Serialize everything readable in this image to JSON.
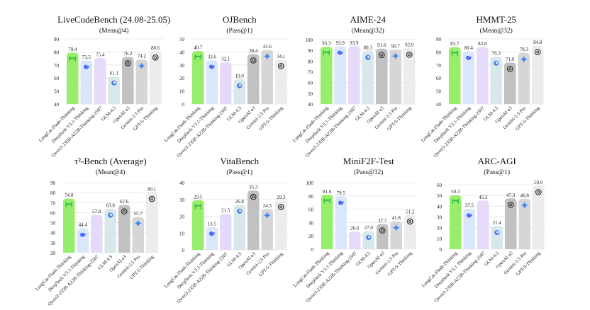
{
  "models": [
    "LongCat-Flash-Thinking",
    "DeepSeek V3.1-Thinking",
    "Qwen3-235B-A22B-Thinking-2507",
    "GLM-4.5",
    "OpenAI o3",
    "Gemini-2.5 Pro",
    "GPT-5-Thinking"
  ],
  "model_colors": [
    "#97ee6b",
    "#dae7fb",
    "#e6dafa",
    "#d7e7ea",
    "#c1c1c1",
    "#d6d6d6",
    "#ececec"
  ],
  "model_icons": [
    "longcat-icon",
    "deepseek-whale-icon",
    "",
    "glm-icon",
    "openai-icon",
    "gemini-sparkle-icon",
    "openai-icon"
  ],
  "icon_colors": {
    "longcat-icon": "#2fb84a",
    "deepseek-whale-icon": "#4d6bfe",
    "glm-icon": "#3b6fe8",
    "openai-icon": "#333333",
    "gemini-sparkle-icon": "#3d86f5"
  },
  "chart_data": [
    {
      "type": "bar",
      "title": "LiveCodeBench (24.08-25.05)",
      "subtitle": "(Mean@4)",
      "categories": [
        "LongCat-Flash-Thinking",
        "DeepSeek V3.1-Thinking",
        "Qwen3-235B-A22B-Thinking-2507",
        "GLM-4.5",
        "OpenAI o3",
        "Gemini-2.5 Pro",
        "GPT-5-Thinking"
      ],
      "values": [
        79.4,
        73.5,
        75.4,
        61.1,
        76.2,
        74.2,
        80.6
      ],
      "value_labels": [
        "79.4",
        "73.5",
        "75.4",
        "61.1",
        "76.2",
        "74.2",
        "80.6"
      ],
      "ylim": [
        40,
        90
      ],
      "yticks": [
        40,
        50,
        60,
        70,
        80,
        90
      ],
      "xlabel": "",
      "ylabel": "",
      "grid": true
    },
    {
      "type": "bar",
      "title": "OJBench",
      "subtitle": "(Pass@1)",
      "categories": [
        "LongCat-Flash-Thinking",
        "DeepSeek V3.1-Thinking",
        "Qwen3-235B-A22B-Thinking-2507",
        "GLM-4.5",
        "OpenAI o3",
        "Gemini-2.5 Pro",
        "GPT-5-Thinking"
      ],
      "values": [
        40.7,
        33.6,
        32.1,
        19.0,
        38.4,
        41.6,
        34.1
      ],
      "value_labels": [
        "40.7",
        "33.6",
        "32.1",
        "19.0",
        "38.4",
        "41.6",
        "34.1"
      ],
      "ylim": [
        0,
        50
      ],
      "yticks": [
        0,
        10,
        20,
        30,
        40,
        50
      ],
      "xlabel": "",
      "ylabel": "",
      "grid": true
    },
    {
      "type": "bar",
      "title": "AIME-24",
      "subtitle": "(Mean@32)",
      "categories": [
        "LongCat-Flash-Thinking",
        "DeepSeek V3.1-Thinking",
        "Qwen3-235B-A22B-Thinking-2507",
        "GLM-4.5",
        "OpenAI o3",
        "Gemini-2.5 Pro",
        "GPT-5-Thinking"
      ],
      "values": [
        93.3,
        93.9,
        93.9,
        89.3,
        91.6,
        90.7,
        92.0
      ],
      "value_labels": [
        "93.3",
        "93.9",
        "93.9",
        "89.3",
        "91.6",
        "90.7",
        "92.0"
      ],
      "ylim": [
        40,
        100
      ],
      "yticks": [
        40,
        50,
        60,
        70,
        80,
        90,
        100
      ],
      "xlabel": "",
      "ylabel": "",
      "grid": true
    },
    {
      "type": "bar",
      "title": "HMMT-25",
      "subtitle": "(Mean@32)",
      "categories": [
        "LongCat-Flash-Thinking",
        "DeepSeek V3.1-Thinking",
        "Qwen3-235B-A22B-Thinking-2507",
        "GLM-4.5",
        "OpenAI o3",
        "Gemini-2.5 Pro",
        "GPT-5-Thinking"
      ],
      "values": [
        83.7,
        80.4,
        83.8,
        76.3,
        71.9,
        79.3,
        84.8
      ],
      "value_labels": [
        "83.7",
        "80.4",
        "83.8",
        "76.3",
        "71.9",
        "79.3",
        "84.8"
      ],
      "ylim": [
        40,
        90
      ],
      "yticks": [
        40,
        50,
        60,
        70,
        80,
        90
      ],
      "xlabel": "",
      "ylabel": "",
      "grid": true
    },
    {
      "type": "bar",
      "title": "τ²-Bench (Average)",
      "subtitle": "(Mean@4)",
      "categories": [
        "LongCat-Flash-Thinking",
        "DeepSeek V3.1-Thinking",
        "Qwen3-235B-A22B-Thinking-2507",
        "GLM-4.5",
        "OpenAI o3",
        "Gemini-2.5 Pro",
        "GPT-5-Thinking"
      ],
      "values": [
        74.0,
        44.4,
        57.8,
        63.8,
        67.6,
        55.7,
        80.1
      ],
      "value_labels": [
        "74.0",
        "44.4",
        "57.8",
        "63.8",
        "67.6",
        "55.7",
        "80.1"
      ],
      "ylim": [
        20,
        90
      ],
      "yticks": [
        20,
        30,
        40,
        50,
        60,
        70,
        80,
        90
      ],
      "xlabel": "",
      "ylabel": "",
      "grid": true
    },
    {
      "type": "bar",
      "title": "VitaBench",
      "subtitle": "(Pass@1)",
      "categories": [
        "LongCat-Flash-Thinking",
        "DeepSeek V3.1-Thinking",
        "Qwen3-235B-A22B-Thinking-2507",
        "GLM-4.5",
        "OpenAI o3",
        "Gemini-2.5 Pro",
        "GPT-5-Thinking"
      ],
      "values": [
        29.5,
        13.5,
        21.5,
        26.8,
        35.3,
        24.3,
        29.3
      ],
      "value_labels": [
        "29.5",
        "13.5",
        "21.5",
        "26.8",
        "35.3",
        "24.3",
        "29.3"
      ],
      "ylim": [
        0,
        40
      ],
      "yticks": [
        0,
        10,
        20,
        30,
        40
      ],
      "xlabel": "",
      "ylabel": "",
      "grid": true
    },
    {
      "type": "bar",
      "title": "MiniF2F-Test",
      "subtitle": "(Pass@32)",
      "categories": [
        "LongCat-Flash-Thinking",
        "DeepSeek V3.1-Thinking",
        "Qwen3-235B-A22B-Thinking-2507",
        "GLM-4.5",
        "OpenAI o3",
        "Gemini-2.5 Pro",
        "GPT-5-Thinking"
      ],
      "values": [
        81.6,
        79.5,
        26.6,
        27.0,
        37.7,
        41.8,
        51.2
      ],
      "value_labels": [
        "81.6",
        "79.5",
        "26.6",
        "27.0",
        "37.7",
        "41.8",
        "51.2"
      ],
      "ylim": [
        0,
        100
      ],
      "yticks": [
        0,
        20,
        40,
        60,
        80,
        100
      ],
      "xlabel": "",
      "ylabel": "",
      "grid": true
    },
    {
      "type": "bar",
      "title": "ARC-AGI",
      "subtitle": "(Pass@1)",
      "categories": [
        "LongCat-Flash-Thinking",
        "DeepSeek V3.1-Thinking",
        "Qwen3-235B-A22B-Thinking-2507",
        "GLM-4.5",
        "OpenAI o3",
        "Gemini-2.5 Pro",
        "GPT-5-Thinking"
      ],
      "values": [
        50.3,
        37.5,
        45.3,
        21.4,
        47.3,
        46.8,
        59.0
      ],
      "value_labels": [
        "50.3",
        "37.5",
        "45.3",
        "21.4",
        "47.3",
        "46.8",
        "59.0"
      ],
      "ylim": [
        0,
        60
      ],
      "yticks": [
        0,
        10,
        20,
        30,
        40,
        50,
        60
      ],
      "xlabel": "",
      "ylabel": "",
      "grid": true
    }
  ]
}
